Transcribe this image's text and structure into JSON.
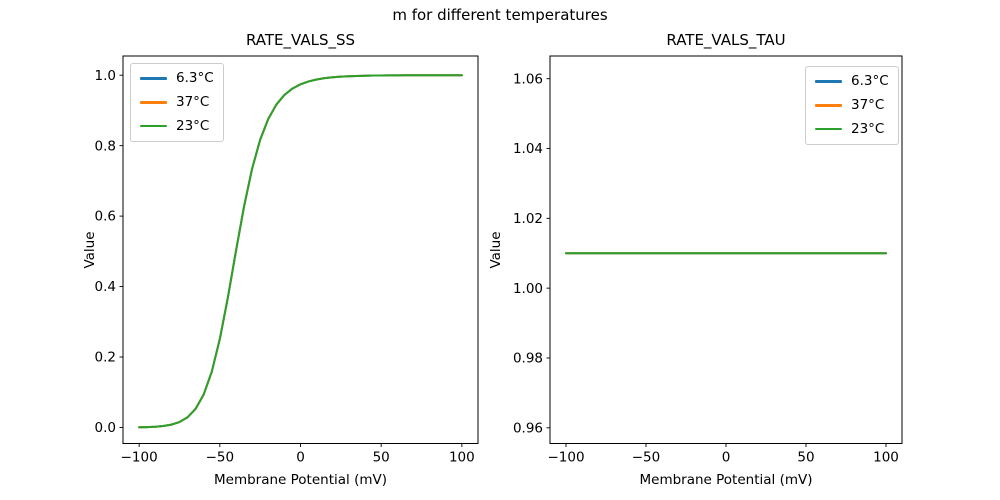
{
  "figure": {
    "suptitle": "m for different temperatures",
    "background": "#ffffff",
    "text_color": "#000000"
  },
  "chart_data": [
    {
      "id": "rate-vals-ss",
      "type": "line",
      "title": "RATE_VALS_SS",
      "xlabel": "Membrane Potential (mV)",
      "ylabel": "Value",
      "xlim": [
        -110,
        110
      ],
      "ylim": [
        -0.0455,
        1.0545
      ],
      "xticks": {
        "values": [
          -100,
          -50,
          0,
          50,
          100
        ],
        "labels": [
          "−100",
          "−50",
          "0",
          "50",
          "100"
        ]
      },
      "yticks": {
        "values": [
          0.0,
          0.2,
          0.4,
          0.6,
          0.8,
          1.0
        ],
        "labels": [
          "0.0",
          "0.2",
          "0.4",
          "0.6",
          "0.8",
          "1.0"
        ]
      },
      "grid": false,
      "legend_position": "upper-left",
      "series_overlap": true,
      "x": [
        -100,
        -95,
        -90,
        -85,
        -80,
        -75,
        -70,
        -65,
        -60,
        -55,
        -50,
        -45,
        -40,
        -35,
        -30,
        -25,
        -20,
        -15,
        -10,
        -5,
        0,
        5,
        10,
        15,
        20,
        25,
        30,
        35,
        40,
        45,
        50,
        55,
        60,
        65,
        70,
        75,
        80,
        85,
        90,
        95,
        100
      ],
      "y_shared": [
        0.0005,
        0.0011,
        0.0021,
        0.0041,
        0.0081,
        0.0154,
        0.0289,
        0.0529,
        0.0937,
        0.158,
        0.251,
        0.3692,
        0.5006,
        0.6271,
        0.7344,
        0.8167,
        0.8757,
        0.9163,
        0.9437,
        0.962,
        0.9742,
        0.9823,
        0.9878,
        0.9916,
        0.9941,
        0.9959,
        0.9971,
        0.9979,
        0.9985,
        0.999,
        0.9993,
        0.9995,
        0.9996,
        0.9997,
        0.9998,
        0.9999,
        0.9999,
        0.9999,
        0.9999,
        1.0,
        1.0
      ],
      "series": [
        {
          "name": "6.3°C",
          "color": "#1f77b4"
        },
        {
          "name": "37°C",
          "color": "#ff7f0e"
        },
        {
          "name": "23°C",
          "color": "#2ca02c"
        }
      ]
    },
    {
      "id": "rate-vals-tau",
      "type": "line",
      "title": "RATE_VALS_TAU",
      "xlabel": "Membrane Potential (mV)",
      "ylabel": "Value",
      "xlim": [
        -110,
        110
      ],
      "ylim": [
        0.9555,
        1.0665
      ],
      "xticks": {
        "values": [
          -100,
          -50,
          0,
          50,
          100
        ],
        "labels": [
          "−100",
          "−50",
          "0",
          "50",
          "100"
        ]
      },
      "yticks": {
        "values": [
          0.96,
          0.98,
          1.0,
          1.02,
          1.04,
          1.06
        ],
        "labels": [
          "0.96",
          "0.98",
          "1.00",
          "1.02",
          "1.04",
          "1.06"
        ]
      },
      "grid": false,
      "legend_position": "upper-right",
      "series_overlap": true,
      "x": [
        -100,
        100
      ],
      "y_shared": [
        1.01,
        1.01
      ],
      "series": [
        {
          "name": "6.3°C",
          "color": "#1f77b4"
        },
        {
          "name": "37°C",
          "color": "#ff7f0e"
        },
        {
          "name": "23°C",
          "color": "#2ca02c"
        }
      ]
    }
  ]
}
